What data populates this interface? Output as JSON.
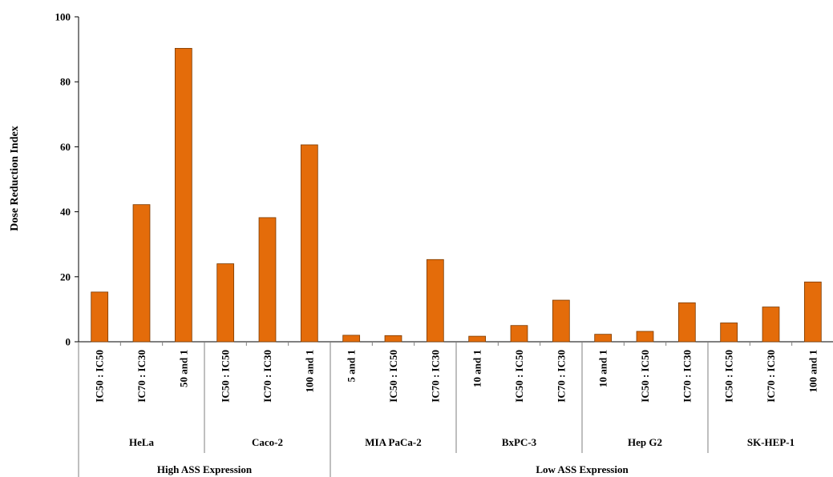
{
  "chart_data": {
    "type": "bar",
    "ylabel": "Dose Reduction Index",
    "ylim": [
      0,
      100
    ],
    "yticks": [
      "0",
      "20",
      "40",
      "60",
      "80",
      "100"
    ],
    "bar_color": "#E46C0A",
    "grid": false,
    "legend": "none",
    "super_groups": [
      {
        "label": "High ASS Expression",
        "group_count": 2
      },
      {
        "label": "Low ASS Expression",
        "group_count": 4
      }
    ],
    "groups": [
      {
        "label": "HeLa",
        "categories": [
          "IC50 : IC50",
          "IC70 : IC30",
          "50 and 1"
        ],
        "values": [
          15.3,
          42.2,
          90.3
        ]
      },
      {
        "label": "Caco-2",
        "categories": [
          "IC50 : IC50",
          "IC70 : IC30",
          "100 and 1"
        ],
        "values": [
          24.0,
          38.2,
          60.6
        ]
      },
      {
        "label": "MIA PaCa-2",
        "categories": [
          "5 and 1",
          "IC50 : IC50",
          "IC70 : IC30"
        ],
        "values": [
          2.0,
          1.9,
          25.3
        ]
      },
      {
        "label": "BxPC-3",
        "categories": [
          "10 and 1",
          "IC50 : IC50",
          "IC70 : IC30"
        ],
        "values": [
          1.7,
          5.0,
          12.8
        ]
      },
      {
        "label": "Hep G2",
        "categories": [
          "10 and 1",
          "IC50 : IC50",
          "IC70 : IC30"
        ],
        "values": [
          2.3,
          3.2,
          12.0
        ]
      },
      {
        "label": "SK-HEP-1",
        "categories": [
          "IC50 : IC50",
          "IC70 : IC30",
          "100 and 1"
        ],
        "values": [
          5.8,
          10.7,
          18.4
        ]
      }
    ]
  }
}
